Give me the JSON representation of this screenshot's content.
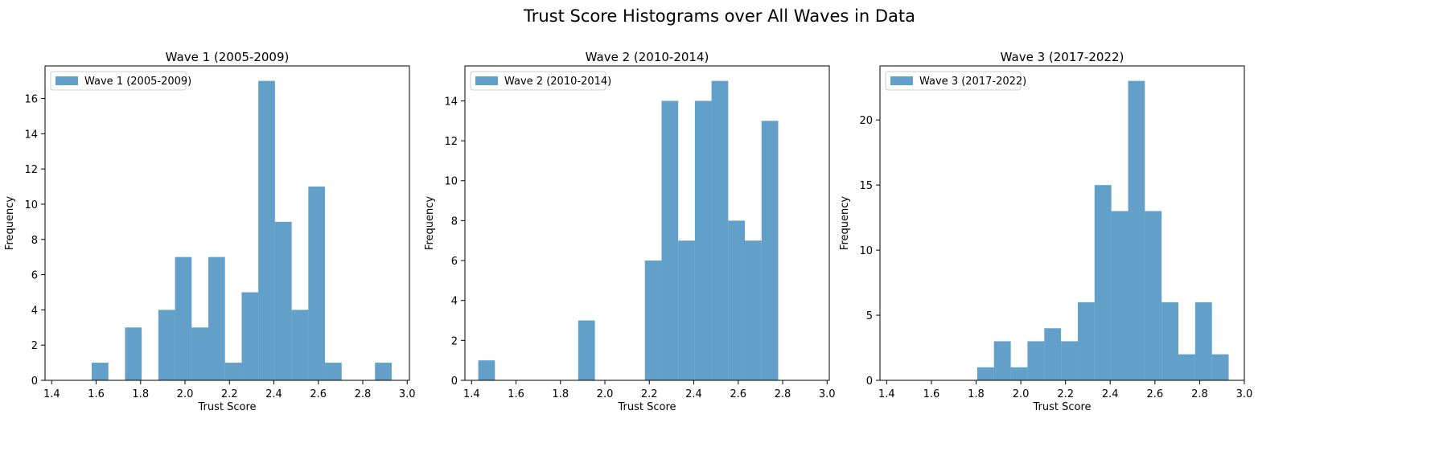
{
  "suptitle": "Trust Score Histograms over All Waves in Data",
  "colors": {
    "bar": "#1f77b4",
    "bar_opacity": 0.7,
    "axis": "#000000",
    "legend_border": "#cccccc"
  },
  "chart_data": [
    {
      "type": "bar",
      "title": "Wave 1 (2005-2009)",
      "xlabel": "Trust Score",
      "ylabel": "Frequency",
      "legend": "Wave 1 (2005-2009)",
      "legend_loc": "upper-left",
      "grid": false,
      "xlim": [
        1.37,
        3.01
      ],
      "ylim": [
        0,
        17.85
      ],
      "xticks": [
        1.4,
        1.6,
        1.8,
        2.0,
        2.2,
        2.4,
        2.6,
        2.8,
        3.0
      ],
      "xtick_labels": [
        "1.4",
        "1.6",
        "1.8",
        "2.0",
        "2.2",
        "2.4",
        "2.6",
        "2.8",
        "3.0"
      ],
      "yticks": [
        0,
        2,
        4,
        6,
        8,
        10,
        12,
        14,
        16
      ],
      "ytick_labels": [
        "0",
        "2",
        "4",
        "6",
        "8",
        "10",
        "12",
        "14",
        "16"
      ],
      "bin_edges": [
        1.43,
        1.505,
        1.58,
        1.655,
        1.73,
        1.805,
        1.88,
        1.955,
        2.03,
        2.105,
        2.18,
        2.255,
        2.33,
        2.405,
        2.48,
        2.555,
        2.63,
        2.705,
        2.78,
        2.855,
        2.93
      ],
      "values": [
        0,
        0,
        1,
        0,
        3,
        0,
        4,
        7,
        3,
        7,
        1,
        5,
        17,
        9,
        4,
        11,
        1,
        0,
        0,
        1
      ]
    },
    {
      "type": "bar",
      "title": "Wave 2 (2010-2014)",
      "xlabel": "Trust Score",
      "ylabel": "Frequency",
      "legend": "Wave 2 (2010-2014)",
      "legend_loc": "upper-left",
      "grid": false,
      "xlim": [
        1.37,
        3.01
      ],
      "ylim": [
        0,
        15.75
      ],
      "xticks": [
        1.4,
        1.6,
        1.8,
        2.0,
        2.2,
        2.4,
        2.6,
        2.8,
        3.0
      ],
      "xtick_labels": [
        "1.4",
        "1.6",
        "1.8",
        "2.0",
        "2.2",
        "2.4",
        "2.6",
        "2.8",
        "3.0"
      ],
      "yticks": [
        0,
        2,
        4,
        6,
        8,
        10,
        12,
        14
      ],
      "ytick_labels": [
        "0",
        "2",
        "4",
        "6",
        "8",
        "10",
        "12",
        "14"
      ],
      "bin_edges": [
        1.43,
        1.505,
        1.58,
        1.655,
        1.73,
        1.805,
        1.88,
        1.955,
        2.03,
        2.105,
        2.18,
        2.255,
        2.33,
        2.405,
        2.48,
        2.555,
        2.63,
        2.705,
        2.78
      ],
      "values": [
        1,
        0,
        0,
        0,
        0,
        0,
        3,
        0,
        0,
        0,
        6,
        14,
        7,
        14,
        15,
        8,
        7,
        13
      ]
    },
    {
      "type": "bar",
      "title": "Wave 3 (2017-2022)",
      "xlabel": "Trust Score",
      "ylabel": "Frequency",
      "legend": "Wave 3 (2017-2022)",
      "legend_loc": "upper-left",
      "grid": false,
      "xlim": [
        1.37,
        3.0
      ],
      "ylim": [
        0,
        24.15
      ],
      "xticks": [
        1.4,
        1.6,
        1.8,
        2.0,
        2.2,
        2.4,
        2.6,
        2.8,
        3.0
      ],
      "xtick_labels": [
        "1.4",
        "1.6",
        "1.8",
        "2.0",
        "2.2",
        "2.4",
        "2.6",
        "2.8",
        "3.0"
      ],
      "yticks": [
        0,
        5,
        10,
        15,
        20
      ],
      "ytick_labels": [
        "0",
        "5",
        "10",
        "15",
        "20"
      ],
      "bin_edges": [
        1.43,
        1.505,
        1.58,
        1.655,
        1.73,
        1.805,
        1.88,
        1.955,
        2.03,
        2.105,
        2.18,
        2.255,
        2.33,
        2.405,
        2.48,
        2.555,
        2.63,
        2.705,
        2.78,
        2.855,
        2.93
      ],
      "values": [
        0,
        0,
        0,
        0,
        0,
        1,
        3,
        1,
        3,
        4,
        3,
        6,
        15,
        13,
        23,
        13,
        6,
        2,
        6,
        2
      ]
    }
  ]
}
